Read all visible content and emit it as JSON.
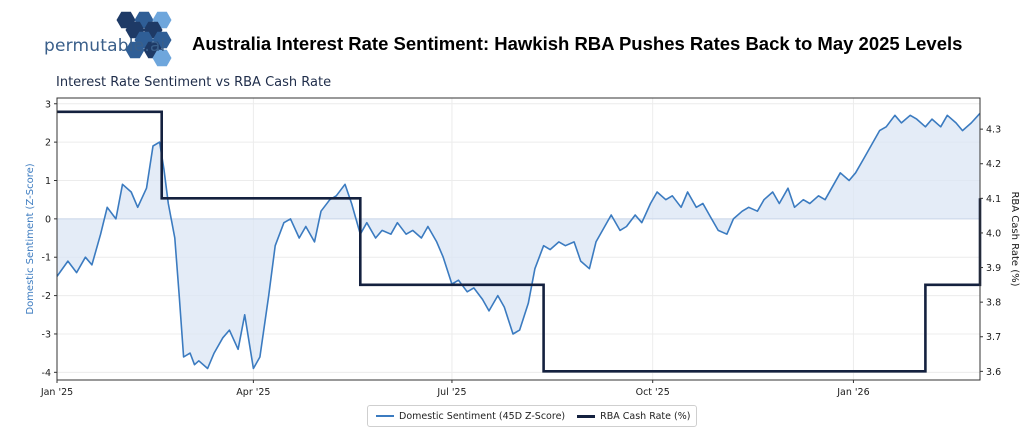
{
  "header": {
    "brand": "permutable.ai",
    "title": "Australia Interest Rate Sentiment: Hawkish RBA Pushes Rates Back to May 2025 Levels"
  },
  "colors": {
    "sentiment_line": "#3b7bc0",
    "sentiment_fill": "#dbe6f4",
    "rba_line": "#14213f",
    "logo_dark": "#1e3a66",
    "logo_mid": "#2f5e96",
    "logo_light": "#6ea6dc"
  },
  "chart_data": {
    "type": "line",
    "title": "Interest Rate Sentiment vs RBA Cash Rate",
    "xlabel": "",
    "ylabel_left": "Domestic Sentiment (Z-Score)",
    "ylabel_right": "RBA Cash Rate (%)",
    "x_ticks": [
      "Jan '25",
      "Apr '25",
      "Jul '25",
      "Oct '25",
      "Jan '26"
    ],
    "x_range": [
      "2025-01-01",
      "2026-02-28"
    ],
    "ylim_left": [
      -4.2,
      3.15
    ],
    "ylim_right": [
      3.575,
      4.39
    ],
    "y_ticks_left": [
      -4,
      -3,
      -2,
      -1,
      0,
      1,
      2,
      3
    ],
    "y_ticks_right": [
      3.6,
      3.7,
      3.8,
      3.9,
      4.0,
      4.1,
      4.2,
      4.3
    ],
    "grid": true,
    "legend": "bottom-center",
    "series": [
      {
        "name": "Domestic Sentiment (45D Z-Score)",
        "axis": "left",
        "x": [
          "2025-01-01",
          "2025-01-06",
          "2025-01-10",
          "2025-01-14",
          "2025-01-17",
          "2025-01-21",
          "2025-01-24",
          "2025-01-28",
          "2025-01-31",
          "2025-02-04",
          "2025-02-07",
          "2025-02-11",
          "2025-02-14",
          "2025-02-17",
          "2025-02-19",
          "2025-02-21",
          "2025-02-24",
          "2025-02-26",
          "2025-02-28",
          "2025-03-03",
          "2025-03-05",
          "2025-03-07",
          "2025-03-11",
          "2025-03-14",
          "2025-03-18",
          "2025-03-21",
          "2025-03-25",
          "2025-03-28",
          "2025-04-01",
          "2025-04-04",
          "2025-04-08",
          "2025-04-11",
          "2025-04-15",
          "2025-04-18",
          "2025-04-22",
          "2025-04-25",
          "2025-04-29",
          "2025-05-02",
          "2025-05-06",
          "2025-05-09",
          "2025-05-13",
          "2025-05-16",
          "2025-05-20",
          "2025-05-23",
          "2025-05-27",
          "2025-05-30",
          "2025-06-03",
          "2025-06-06",
          "2025-06-10",
          "2025-06-13",
          "2025-06-17",
          "2025-06-20",
          "2025-06-24",
          "2025-06-27",
          "2025-07-01",
          "2025-07-04",
          "2025-07-08",
          "2025-07-11",
          "2025-07-15",
          "2025-07-18",
          "2025-07-22",
          "2025-07-25",
          "2025-07-29",
          "2025-08-01",
          "2025-08-05",
          "2025-08-08",
          "2025-08-12",
          "2025-08-15",
          "2025-08-19",
          "2025-08-22",
          "2025-08-26",
          "2025-08-29",
          "2025-09-02",
          "2025-09-05",
          "2025-09-09",
          "2025-09-12",
          "2025-09-16",
          "2025-09-19",
          "2025-09-23",
          "2025-09-26",
          "2025-09-30",
          "2025-10-03",
          "2025-10-07",
          "2025-10-10",
          "2025-10-14",
          "2025-10-17",
          "2025-10-21",
          "2025-10-24",
          "2025-10-28",
          "2025-10-31",
          "2025-11-04",
          "2025-11-07",
          "2025-11-11",
          "2025-11-14",
          "2025-11-18",
          "2025-11-21",
          "2025-11-25",
          "2025-11-28",
          "2025-12-02",
          "2025-12-05",
          "2025-12-09",
          "2025-12-12",
          "2025-12-16",
          "2025-12-19",
          "2025-12-23",
          "2025-12-26",
          "2025-12-30",
          "2026-01-02",
          "2026-01-06",
          "2026-01-09",
          "2026-01-13",
          "2026-01-16",
          "2026-01-20",
          "2026-01-23",
          "2026-01-27",
          "2026-01-30",
          "2026-02-03",
          "2026-02-06",
          "2026-02-10",
          "2026-02-13",
          "2026-02-17",
          "2026-02-20",
          "2026-02-24",
          "2026-02-28"
        ],
        "values": [
          -1.5,
          -1.1,
          -1.4,
          -1.0,
          -1.2,
          -0.4,
          0.3,
          0.0,
          0.9,
          0.7,
          0.3,
          0.8,
          1.9,
          2.0,
          1.3,
          0.4,
          -0.5,
          -2.0,
          -3.6,
          -3.5,
          -3.8,
          -3.7,
          -3.9,
          -3.5,
          -3.1,
          -2.9,
          -3.4,
          -2.5,
          -3.9,
          -3.6,
          -2.0,
          -0.7,
          -0.1,
          0.0,
          -0.5,
          -0.2,
          -0.6,
          0.2,
          0.5,
          0.6,
          0.9,
          0.4,
          -0.4,
          -0.1,
          -0.5,
          -0.3,
          -0.4,
          -0.1,
          -0.4,
          -0.3,
          -0.5,
          -0.2,
          -0.6,
          -1.0,
          -1.7,
          -1.6,
          -1.9,
          -1.8,
          -2.1,
          -2.4,
          -2.0,
          -2.3,
          -3.0,
          -2.9,
          -2.2,
          -1.3,
          -0.7,
          -0.8,
          -0.6,
          -0.7,
          -0.6,
          -1.1,
          -1.3,
          -0.6,
          -0.2,
          0.1,
          -0.3,
          -0.2,
          0.1,
          -0.1,
          0.4,
          0.7,
          0.5,
          0.6,
          0.3,
          0.7,
          0.3,
          0.4,
          0.0,
          -0.3,
          -0.4,
          0.0,
          0.2,
          0.3,
          0.2,
          0.5,
          0.7,
          0.4,
          0.8,
          0.3,
          0.5,
          0.4,
          0.6,
          0.5,
          0.9,
          1.2,
          1.0,
          1.2,
          1.6,
          1.9,
          2.3,
          2.4,
          2.7,
          2.5,
          2.7,
          2.6,
          2.4,
          2.6,
          2.4,
          2.7,
          2.5,
          2.3,
          2.5,
          2.75
        ]
      },
      {
        "name": "RBA Cash Rate (%)",
        "axis": "right",
        "step": true,
        "x": [
          "2025-01-01",
          "2025-02-18",
          "2025-05-20",
          "2025-08-12",
          "2026-02-03",
          "2026-02-28"
        ],
        "values": [
          4.35,
          4.1,
          3.85,
          3.6,
          3.85,
          4.1
        ]
      }
    ]
  }
}
